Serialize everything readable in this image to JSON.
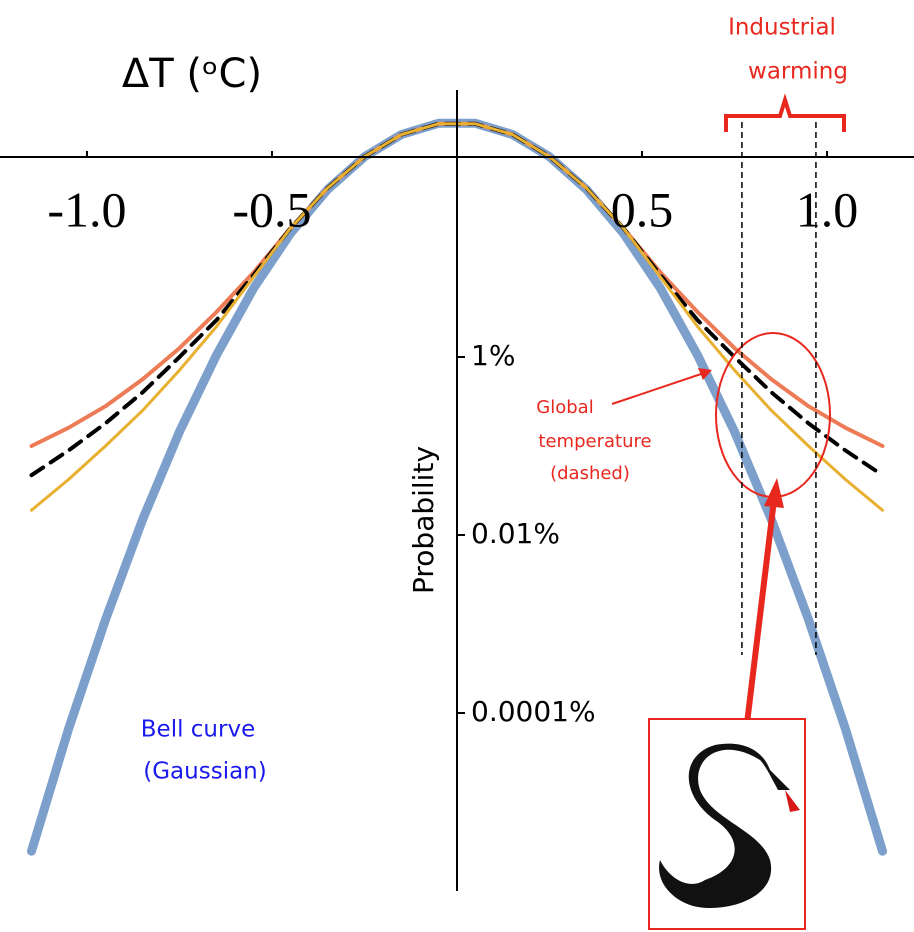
{
  "chart_data": {
    "type": "line",
    "title": "ΔT (ᵒC)",
    "y_label": "Probability",
    "yscale": "log",
    "x": [
      -1.15,
      -1.05,
      -0.95,
      -0.85,
      -0.75,
      -0.65,
      -0.55,
      -0.45,
      -0.35,
      -0.25,
      -0.15,
      -0.05,
      0.05,
      0.15,
      0.25,
      0.35,
      0.45,
      0.55,
      0.65,
      0.75,
      0.85,
      0.95,
      1.05,
      1.15
    ],
    "series": [
      {
        "color": "#7c9fcb",
        "values": [
          2.8e-06,
          6.6e-05,
          0.00112,
          0.0148,
          0.145,
          1.05,
          5.9,
          24.5,
          76,
          178,
          316,
          422,
          422,
          316,
          178,
          76,
          24.5,
          5.9,
          1.05,
          0.145,
          0.0148,
          0.00112,
          6.6e-05,
          2.8e-06
        ]
      },
      {
        "color": "#ec7b56",
        "values": [
          0.1,
          0.16,
          0.28,
          0.56,
          1.26,
          3.2,
          8.9,
          28,
          79,
          178,
          316,
          417,
          417,
          316,
          178,
          79,
          28,
          8.9,
          3.2,
          1.26,
          0.56,
          0.28,
          0.16,
          0.1
        ]
      },
      {
        "color": "#000000",
        "dashed": true,
        "values": [
          0.047,
          0.089,
          0.18,
          0.4,
          1,
          2.6,
          8.3,
          28,
          79,
          178,
          316,
          417,
          417,
          316,
          178,
          79,
          28,
          8.3,
          2.6,
          1,
          0.4,
          0.18,
          0.089,
          0.047
        ]
      },
      {
        "color": "#e8b030",
        "values": [
          0.019,
          0.042,
          0.1,
          0.25,
          0.71,
          2.2,
          7.9,
          28,
          79,
          178,
          316,
          417,
          417,
          316,
          178,
          79,
          28,
          7.9,
          2.2,
          0.71,
          0.25,
          0.1,
          0.042,
          0.019
        ]
      }
    ],
    "xlim": [
      -1.235,
      1.235
    ],
    "xticks": [
      {
        "value": -1,
        "label": "-1.0"
      },
      {
        "value": -0.5,
        "label": "-0.5"
      },
      {
        "value": 0.5,
        "label": "0.5"
      },
      {
        "value": 1,
        "label": "1.0"
      }
    ],
    "ylim": [
      1e-06,
      1000
    ],
    "yticks": [
      {
        "value": 1,
        "label": "1%"
      },
      {
        "value": 0.01,
        "label": "0.01%"
      },
      {
        "value": 0.0001,
        "label": "0.0001%"
      }
    ],
    "warming_range": [
      0.77,
      0.97
    ],
    "annotations": {
      "industrial_warming": [
        "Industrial",
        "warming"
      ],
      "global_temperature": [
        "Global",
        "temperature",
        "(dashed)"
      ],
      "bell_curve": [
        "Bell curve",
        "(Gaussian)"
      ]
    }
  }
}
